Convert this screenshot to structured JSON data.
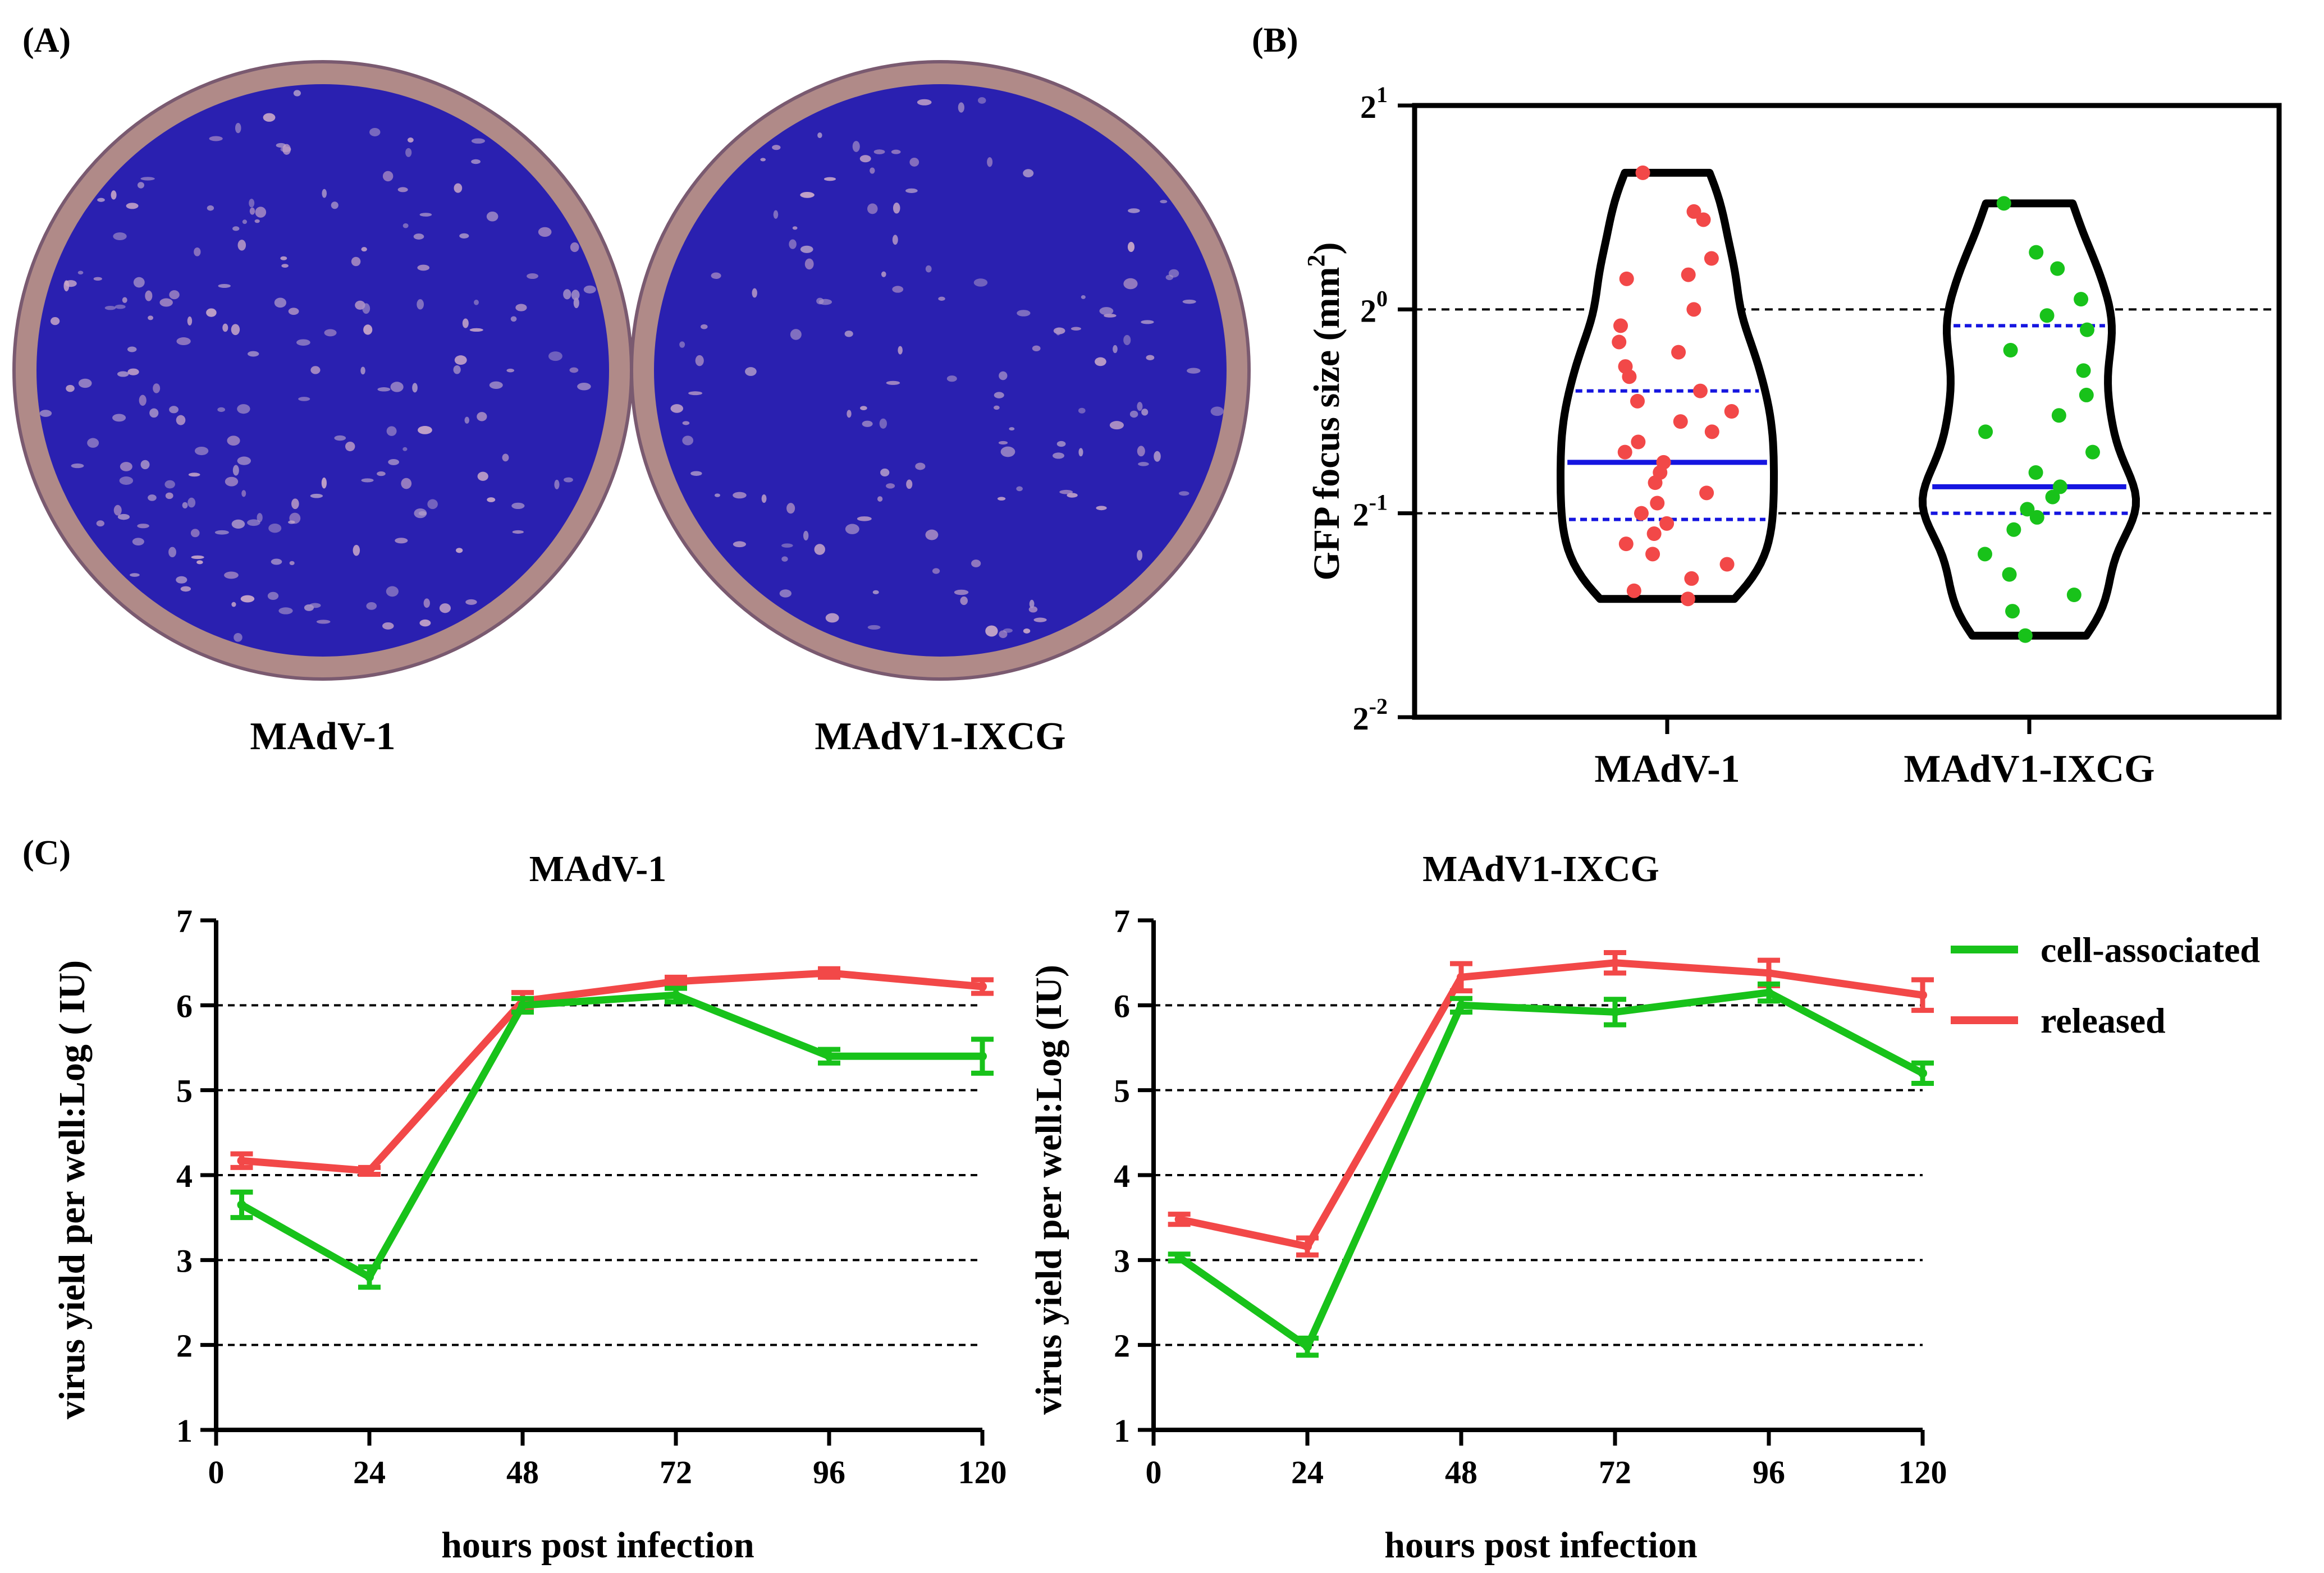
{
  "colors": {
    "cell_associated": "#18c21a",
    "released": "#f24848",
    "median_line": "#1515e0",
    "plate_background": "#2a20b0",
    "plate_rim": "#b08a88",
    "red_dots": "#f24848",
    "green_dots": "#18c21a"
  },
  "panel_a": {
    "label": "(A)",
    "plates": [
      {
        "name": "MAdV-1",
        "image": "plaque-plate"
      },
      {
        "name": "MAdV1-IXCG",
        "image": "plaque-plate"
      }
    ]
  },
  "panel_b": {
    "label": "(B)",
    "chart_data": {
      "type": "violin",
      "ylabel_prefix": "GFP focus size (mm",
      "ylabel_sup": "2",
      "ylabel_suffix": ")",
      "yscale": "log2",
      "ylim_exponent": [
        -2,
        1
      ],
      "y_ticks": [
        {
          "base": "2",
          "exp": "1",
          "value": 1
        },
        {
          "base": "2",
          "exp": "0",
          "value": 0
        },
        {
          "base": "2",
          "exp": "-1",
          "value": -1
        },
        {
          "base": "2",
          "exp": "-2",
          "value": -2
        }
      ],
      "reference_lines_exponent": [
        0,
        -1
      ],
      "groups": [
        {
          "name": "MAdV-1",
          "color": "#f24848",
          "median_exponent": -0.75,
          "quartile_exponents": [
            -1.03,
            -0.4
          ],
          "range_exponent": [
            -1.42,
            0.67
          ],
          "points_exponent": [
            0.67,
            0.48,
            0.44,
            0.25,
            0.17,
            0.15,
            0.0,
            -0.08,
            -0.16,
            -0.21,
            -0.28,
            -0.33,
            -0.4,
            -0.45,
            -0.5,
            -0.55,
            -0.6,
            -0.65,
            -0.7,
            -0.75,
            -0.8,
            -0.85,
            -0.9,
            -0.95,
            -1.0,
            -1.05,
            -1.1,
            -1.15,
            -1.2,
            -1.25,
            -1.32,
            -1.38,
            -1.42
          ]
        },
        {
          "name": "MAdV1-IXCG",
          "color": "#18c21a",
          "median_exponent": -0.87,
          "quartile_exponents": [
            -1.0,
            -0.08
          ],
          "range_exponent": [
            -1.6,
            0.52
          ],
          "points_exponent": [
            0.52,
            0.28,
            0.2,
            0.05,
            -0.03,
            -0.1,
            -0.2,
            -0.3,
            -0.42,
            -0.52,
            -0.6,
            -0.7,
            -0.8,
            -0.87,
            -0.92,
            -0.98,
            -1.02,
            -1.08,
            -1.2,
            -1.3,
            -1.4,
            -1.48,
            -1.6
          ]
        }
      ]
    }
  },
  "panel_c": {
    "label": "(C)",
    "chart_data": [
      {
        "type": "line",
        "title": "MAdV-1",
        "xlabel": "hours post infection",
        "ylabel": "virus yield per well:Log ( IU)",
        "x": [
          4,
          24,
          48,
          72,
          96,
          120
        ],
        "x_ticks": [
          0,
          24,
          48,
          72,
          96,
          120
        ],
        "y_ticks": [
          1,
          2,
          3,
          4,
          5,
          6,
          7
        ],
        "xlim": [
          0,
          120
        ],
        "ylim": [
          1,
          7
        ],
        "grid_y": [
          2,
          3,
          4,
          5,
          6
        ],
        "series": [
          {
            "name": "cell-associated",
            "values": [
              3.65,
              2.8,
              6.0,
              6.12,
              5.4,
              5.4
            ],
            "errors": [
              0.15,
              0.12,
              0.08,
              0.08,
              0.08,
              0.2
            ]
          },
          {
            "name": "released",
            "values": [
              4.17,
              4.05,
              6.05,
              6.28,
              6.38,
              6.22
            ],
            "errors": [
              0.08,
              0.04,
              0.1,
              0.05,
              0.05,
              0.08
            ]
          }
        ]
      },
      {
        "type": "line",
        "title": "MAdV1-IXCG",
        "xlabel": "hours post infection",
        "ylabel": "virus yield per well:Log (IU)",
        "x": [
          4,
          24,
          48,
          72,
          96,
          120
        ],
        "x_ticks": [
          0,
          24,
          48,
          72,
          96,
          120
        ],
        "y_ticks": [
          1,
          2,
          3,
          4,
          5,
          6,
          7
        ],
        "xlim": [
          0,
          120
        ],
        "ylim": [
          1,
          7
        ],
        "grid_y": [
          2,
          3,
          4,
          5,
          6
        ],
        "series": [
          {
            "name": "cell-associated",
            "values": [
              3.03,
              1.98,
              6.0,
              5.92,
              6.15,
              5.2
            ],
            "errors": [
              0.04,
              0.1,
              0.08,
              0.15,
              0.1,
              0.12
            ]
          },
          {
            "name": "released",
            "values": [
              3.48,
              3.16,
              6.33,
              6.5,
              6.38,
              6.12
            ],
            "errors": [
              0.06,
              0.1,
              0.16,
              0.12,
              0.15,
              0.18
            ]
          }
        ]
      }
    ],
    "legend": [
      {
        "label": "cell-associated",
        "color": "#18c21a"
      },
      {
        "label": "released",
        "color": "#f24848"
      }
    ]
  }
}
